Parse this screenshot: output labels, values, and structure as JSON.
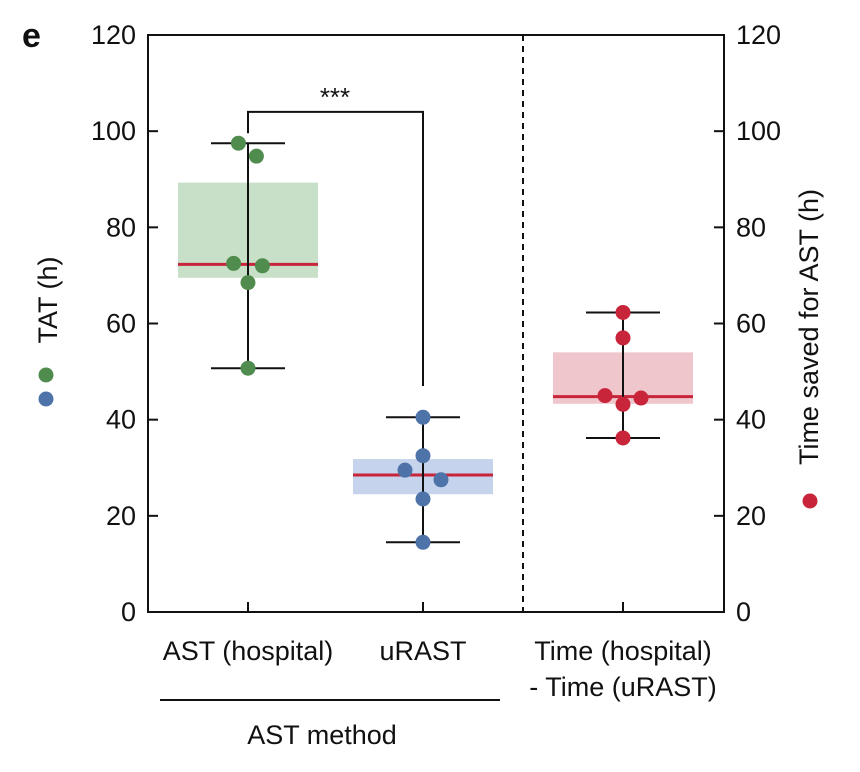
{
  "panel_label": "e",
  "chart_data": {
    "type": "box",
    "y_left": {
      "label": "TAT (h)",
      "ylim": [
        0,
        120
      ],
      "ticks": [
        0,
        20,
        40,
        60,
        80,
        100,
        120
      ]
    },
    "y_right": {
      "label": "Time saved for AST (h)",
      "ylim": [
        0,
        120
      ],
      "ticks": [
        0,
        20,
        40,
        60,
        80,
        100,
        120
      ]
    },
    "categories": [
      {
        "label": "AST (hospital)",
        "label_lines": [
          "AST (hospital)"
        ]
      },
      {
        "label": "uRAST",
        "label_lines": [
          "uRAST"
        ]
      },
      {
        "label": "Time (hospital) - Time (uRAST)",
        "label_lines": [
          "Time (hospital)",
          "- Time (uRAST)"
        ]
      }
    ],
    "group_label": "AST method",
    "series": [
      {
        "category": "AST (hospital)",
        "axis": "left",
        "color": "#4f8c4e",
        "box_fill": "#c9e0c8",
        "median_color": "#c8253a",
        "box": {
          "q1": 69.5,
          "median": 72.3,
          "q3": 89.3
        },
        "whisker": {
          "low": 50.7,
          "high": 97.5
        },
        "points": [
          {
            "x_offset": -0.08,
            "y": 97.5
          },
          {
            "x_offset": 0.07,
            "y": 94.8
          },
          {
            "x_offset": -0.12,
            "y": 72.5
          },
          {
            "x_offset": 0.12,
            "y": 72.0
          },
          {
            "x_offset": 0.0,
            "y": 68.5
          },
          {
            "x_offset": 0.0,
            "y": 50.7
          }
        ]
      },
      {
        "category": "uRAST",
        "axis": "left",
        "color": "#4e73a8",
        "box_fill": "#c5d4ec",
        "median_color": "#c8253a",
        "box": {
          "q1": 24.5,
          "median": 28.5,
          "q3": 31.8
        },
        "whisker": {
          "low": 14.5,
          "high": 40.5
        },
        "points": [
          {
            "x_offset": 0.0,
            "y": 40.5
          },
          {
            "x_offset": 0.0,
            "y": 32.5
          },
          {
            "x_offset": -0.15,
            "y": 29.5
          },
          {
            "x_offset": 0.15,
            "y": 27.5
          },
          {
            "x_offset": 0.0,
            "y": 23.5
          },
          {
            "x_offset": 0.0,
            "y": 14.5
          }
        ]
      },
      {
        "category": "Time (hospital) - Time (uRAST)",
        "axis": "right",
        "color": "#c8253a",
        "box_fill": "#efc6cc",
        "median_color": "#c8253a",
        "box": {
          "q1": 43.3,
          "median": 44.8,
          "q3": 54.0
        },
        "whisker": {
          "low": 36.2,
          "high": 62.3
        },
        "points": [
          {
            "x_offset": 0.0,
            "y": 62.3
          },
          {
            "x_offset": 0.0,
            "y": 57.0
          },
          {
            "x_offset": -0.15,
            "y": 45.0
          },
          {
            "x_offset": 0.15,
            "y": 44.5
          },
          {
            "x_offset": 0.0,
            "y": 43.2
          },
          {
            "x_offset": 0.0,
            "y": 36.2
          }
        ]
      }
    ],
    "significance": {
      "between": [
        "AST (hospital)",
        "uRAST"
      ],
      "label": "***",
      "y": 104
    },
    "divider_after_category": 2,
    "legend": {
      "left_markers": [
        "#4f8c4e",
        "#4e73a8"
      ],
      "right_marker": "#c8253a"
    }
  }
}
